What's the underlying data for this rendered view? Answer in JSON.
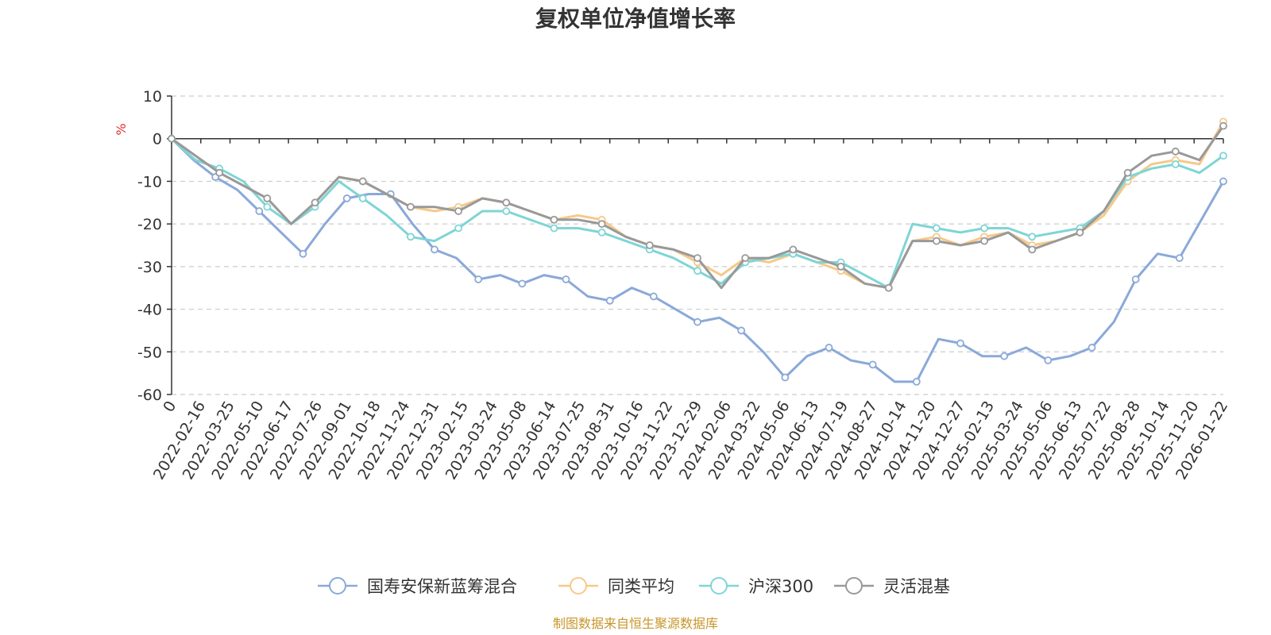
{
  "chart_data": {
    "type": "line",
    "title": "复权单位净值增长率",
    "ylabel": "%",
    "ylim": [
      -60,
      10
    ],
    "yticks": [
      10,
      0,
      -10,
      -20,
      -30,
      -40,
      -50,
      -60
    ],
    "xticks": [
      "0",
      "2022-02-16",
      "2022-03-25",
      "2022-05-10",
      "2022-06-17",
      "2022-07-26",
      "2022-09-01",
      "2022-10-18",
      "2022-11-24",
      "2022-12-31",
      "2023-02-15",
      "2023-03-24",
      "2023-05-08",
      "2023-06-14",
      "2023-07-25",
      "2023-08-31",
      "2023-10-16",
      "2023-11-22",
      "2023-12-29",
      "2024-02-06",
      "2024-03-22",
      "2024-05-06",
      "2024-06-13",
      "2024-07-19",
      "2024-08-27",
      "2024-10-14",
      "2024-11-20",
      "2024-12-27",
      "2025-02-13",
      "2025-03-24",
      "2025-05-06",
      "2025-06-13",
      "2025-07-22",
      "2025-08-28",
      "2025-10-14",
      "2025-11-20",
      "2026-01-22"
    ],
    "grid": true,
    "legend_position": "bottom",
    "series": [
      {
        "name": "国寿安保新蓝筹混合",
        "color": "#8aa9d9",
        "values": [
          0,
          -5,
          -9,
          -12,
          -17,
          -22,
          -27,
          -20,
          -14,
          -13,
          -13,
          -20,
          -26,
          -28,
          -33,
          -32,
          -34,
          -32,
          -33,
          -37,
          -38,
          -35,
          -37,
          -40,
          -43,
          -42,
          -45,
          -50,
          -56,
          -51,
          -49,
          -52,
          -53,
          -57,
          -57,
          -47,
          -48,
          -51,
          -51,
          -49,
          -52,
          -51,
          -49,
          -43,
          -33,
          -27,
          -28,
          -19,
          -10
        ]
      },
      {
        "name": "同类平均",
        "color": "#f6c98a",
        "values": [
          0,
          -4,
          -8,
          -11,
          -14,
          -20,
          -15,
          -9,
          -10,
          -13,
          -16,
          -17,
          -16,
          -14,
          -15,
          -17,
          -19,
          -18,
          -19,
          -23,
          -25,
          -26,
          -29,
          -32,
          -28,
          -29,
          -27,
          -29,
          -31,
          -34,
          -35,
          -24,
          -23,
          -25,
          -23,
          -22,
          -25,
          -24,
          -22,
          -18,
          -10,
          -6,
          -5,
          -6,
          4
        ]
      },
      {
        "name": "沪深300",
        "color": "#7fd5d5",
        "values": [
          0,
          -5,
          -7,
          -10,
          -16,
          -20,
          -16,
          -10,
          -14,
          -18,
          -23,
          -24,
          -21,
          -17,
          -17,
          -19,
          -21,
          -21,
          -22,
          -24,
          -26,
          -28,
          -31,
          -34,
          -29,
          -28,
          -27,
          -29,
          -29,
          -32,
          -35,
          -20,
          -21,
          -22,
          -21,
          -21,
          -23,
          -22,
          -21,
          -17,
          -9,
          -7,
          -6,
          -8,
          -4
        ]
      },
      {
        "name": "灵活混基",
        "color": "#999999",
        "values": [
          0,
          -4,
          -8,
          -11,
          -14,
          -20,
          -15,
          -9,
          -10,
          -13,
          -16,
          -16,
          -17,
          -14,
          -15,
          -17,
          -19,
          -19,
          -20,
          -23,
          -25,
          -26,
          -28,
          -35,
          -28,
          -28,
          -26,
          -28,
          -30,
          -34,
          -35,
          -24,
          -24,
          -25,
          -24,
          -22,
          -26,
          -24,
          -22,
          -17,
          -8,
          -4,
          -3,
          -5,
          3
        ]
      }
    ],
    "source_note": "制图数据来自恒生聚源数据库"
  }
}
